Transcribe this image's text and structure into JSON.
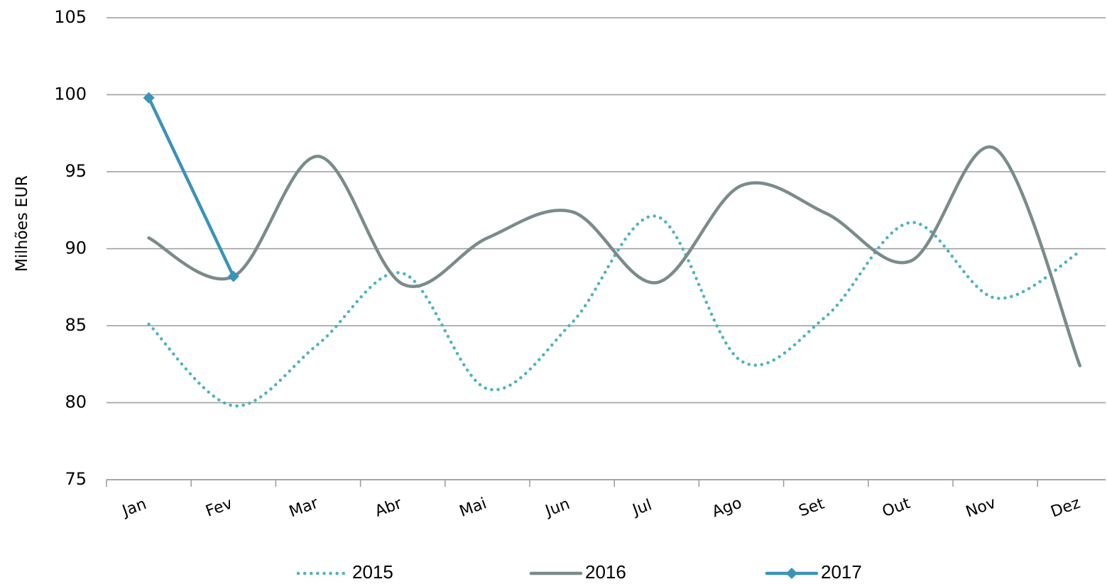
{
  "chart_data": {
    "type": "line",
    "y_label": "Milhões EUR",
    "categories": [
      "Jan",
      "Fev",
      "Mar",
      "Abr",
      "Mai",
      "Jun",
      "Jul",
      "Ago",
      "Set",
      "Out",
      "Nov",
      "Dez"
    ],
    "series": [
      {
        "name": "2015",
        "color": "#4fb3bf",
        "style": "dotted",
        "smooth": true,
        "values": [
          85.1,
          79.8,
          83.8,
          88.4,
          80.9,
          85.2,
          92.1,
          82.7,
          85.6,
          91.7,
          86.8,
          89.8
        ]
      },
      {
        "name": "2016",
        "color": "#7b8b8b",
        "style": "solid",
        "smooth": true,
        "values": [
          90.7,
          88.2,
          96.0,
          87.7,
          90.7,
          92.4,
          87.8,
          94.1,
          92.3,
          89.2,
          96.5,
          82.4
        ]
      },
      {
        "name": "2017",
        "color": "#3a93b8",
        "style": "solid",
        "smooth": false,
        "marker": "diamond",
        "values": [
          99.8,
          88.2,
          null,
          null,
          null,
          null,
          null,
          null,
          null,
          null,
          null,
          null
        ]
      }
    ],
    "ylim": [
      75,
      105
    ],
    "yticks": [
      75,
      80,
      85,
      90,
      95,
      100,
      105
    ],
    "grid": true,
    "legend": "bottom"
  }
}
